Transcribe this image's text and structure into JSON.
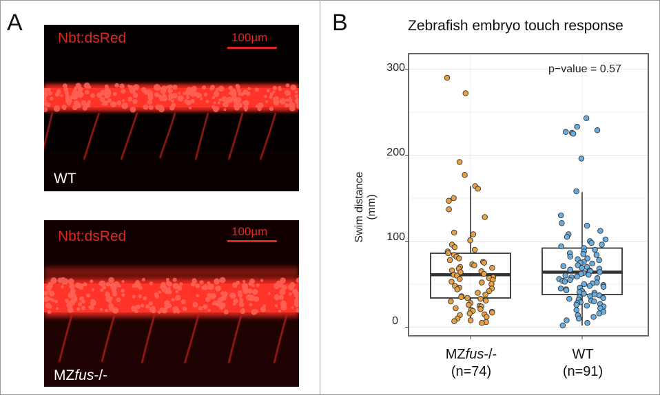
{
  "panels": {
    "a_letter": "A",
    "b_letter": "B"
  },
  "micrographs": [
    {
      "marker": "Nbt:dsRed",
      "scale_text": "100µm",
      "genotype_prefix": "WT",
      "genotype_italic": "",
      "genotype_suffix": ""
    },
    {
      "marker": "Nbt:dsRed",
      "scale_text": "100µm",
      "genotype_prefix": "MZ",
      "genotype_italic": "fus",
      "genotype_suffix": "-/-"
    }
  ],
  "colors": {
    "fluorescence": "#e0271f",
    "mz_points": "#e6a046",
    "wt_points": "#6aaee0"
  },
  "chart_data": {
    "type": "box",
    "title": "Zebrafish embryo touch response",
    "ylabel": "Swim distance (mm)",
    "ylim": [
      -10,
      318
    ],
    "yticks": [
      0,
      100,
      200,
      300
    ],
    "grid": true,
    "annotation": "p−value =  0.57",
    "categories": [
      {
        "name_prefix": "MZ",
        "name_italic": "fus",
        "name_suffix": "-/-",
        "n_label": "(n=74)"
      },
      {
        "name_prefix": "WT",
        "name_italic": "",
        "name_suffix": "",
        "n_label": "(n=91)"
      }
    ],
    "boxes": [
      {
        "q1": 34,
        "median": 61,
        "q3": 86,
        "whisker_low": 6,
        "whisker_high": 164
      },
      {
        "q1": 38,
        "median": 64,
        "q3": 92,
        "whisker_low": 2,
        "whisker_high": 157
      }
    ],
    "points": [
      [
        290,
        272,
        192,
        177,
        164,
        161,
        150,
        147,
        137,
        128,
        110,
        108,
        101,
        96,
        93,
        90,
        88,
        86,
        84,
        82,
        80,
        78,
        76,
        75,
        73,
        72,
        70,
        69,
        68,
        66,
        65,
        64,
        62,
        61,
        60,
        58,
        57,
        56,
        55,
        53,
        52,
        50,
        48,
        46,
        45,
        44,
        42,
        40,
        38,
        36,
        35,
        34,
        33,
        31,
        30,
        28,
        26,
        25,
        24,
        22,
        21,
        20,
        19,
        18,
        17,
        16,
        15,
        14,
        12,
        10,
        8,
        7,
        6,
        5
      ],
      [
        243,
        233,
        229,
        227,
        226,
        225,
        196,
        158,
        130,
        121,
        118,
        112,
        108,
        105,
        102,
        100,
        98,
        96,
        94,
        92,
        90,
        88,
        86,
        85,
        84,
        82,
        80,
        79,
        78,
        76,
        75,
        74,
        72,
        71,
        70,
        69,
        68,
        67,
        66,
        65,
        64,
        63,
        62,
        61,
        60,
        59,
        58,
        57,
        56,
        55,
        54,
        53,
        52,
        51,
        50,
        49,
        48,
        47,
        46,
        45,
        44,
        43,
        42,
        41,
        40,
        39,
        38,
        37,
        36,
        35,
        34,
        33,
        32,
        31,
        30,
        29,
        28,
        27,
        26,
        25,
        24,
        22,
        20,
        18,
        16,
        14,
        12,
        10,
        8,
        5,
        2
      ]
    ]
  }
}
